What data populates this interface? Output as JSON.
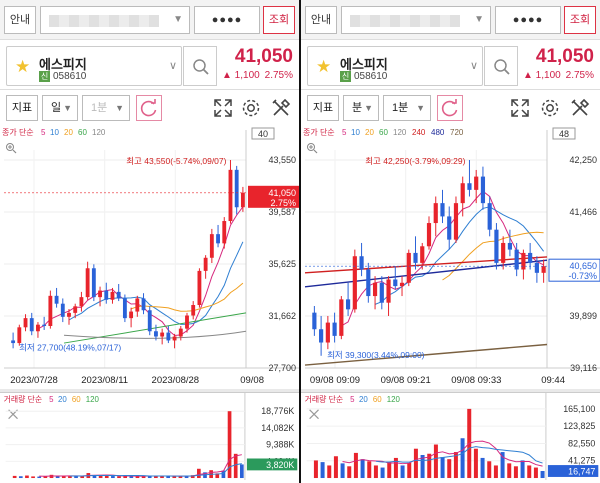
{
  "panes": [
    {
      "id": "left",
      "topbar": {
        "notice": "안내",
        "password_mask": "●●●●",
        "query": "조회"
      },
      "stock": {
        "name": "에스피지",
        "tag": "신",
        "code": "058610",
        "price": "41,050",
        "change": "▲ 1,100",
        "change_pct": "2.75%"
      },
      "toolbar": {
        "indicator": "지표",
        "period": "일",
        "minute": "1분"
      },
      "chart_data": {
        "type": "candlestick",
        "legend": {
          "prefix": "종가 단순",
          "periods": [
            {
              "label": "5",
              "color": "#d6287e"
            },
            {
              "label": "10",
              "color": "#2f7fd2"
            },
            {
              "label": "20",
              "color": "#f0a020"
            },
            {
              "label": "60",
              "color": "#3aa64a"
            },
            {
              "label": "120",
              "color": "#888888"
            }
          ]
        },
        "right_box": "40",
        "y_ticks": [
          "43,550",
          "39,587",
          "35,625",
          "31,662",
          "27,700"
        ],
        "ylim": [
          27700,
          43550
        ],
        "x_ticks": [
          "2023/07/28",
          "2023/08/11",
          "2023/08/28",
          "09/08"
        ],
        "high_label": "최고 43,550(-5.74%,09/07)",
        "low_label": "최저 27,700(48.19%,07/17)",
        "current": {
          "price": "41,050",
          "pct": "2.75%"
        },
        "candles": [
          [
            29800,
            30400,
            29200,
            29600
          ],
          [
            29600,
            31000,
            29400,
            30800
          ],
          [
            30800,
            31800,
            30500,
            31500
          ],
          [
            31500,
            31900,
            30200,
            30500
          ],
          [
            30500,
            31200,
            30000,
            31000
          ],
          [
            31000,
            31600,
            30600,
            30900
          ],
          [
            30900,
            33600,
            30700,
            33200
          ],
          [
            33200,
            33800,
            32300,
            32600
          ],
          [
            32600,
            33000,
            31200,
            31600
          ],
          [
            31600,
            32200,
            31000,
            31900
          ],
          [
            31900,
            32600,
            31500,
            32400
          ],
          [
            32400,
            33500,
            32000,
            33100
          ],
          [
            33100,
            35800,
            32900,
            35300
          ],
          [
            35300,
            35600,
            32800,
            33100
          ],
          [
            33100,
            33900,
            32400,
            33600
          ],
          [
            33600,
            34200,
            32600,
            32900
          ],
          [
            32900,
            33800,
            32600,
            33500
          ],
          [
            33500,
            34100,
            32800,
            33000
          ],
          [
            33000,
            33300,
            31200,
            31500
          ],
          [
            31500,
            32300,
            30800,
            32000
          ],
          [
            32000,
            33200,
            31600,
            33000
          ],
          [
            33000,
            33400,
            31800,
            32100
          ],
          [
            32100,
            32400,
            30200,
            30500
          ],
          [
            30500,
            31000,
            29800,
            30100
          ],
          [
            30100,
            30700,
            29500,
            30400
          ],
          [
            30400,
            30900,
            29600,
            29800
          ],
          [
            29800,
            30300,
            29200,
            30100
          ],
          [
            30100,
            30900,
            29800,
            30700
          ],
          [
            30700,
            31900,
            30400,
            31700
          ],
          [
            31700,
            32800,
            31400,
            32500
          ],
          [
            32500,
            35300,
            32300,
            35100
          ],
          [
            35100,
            36300,
            34500,
            36100
          ],
          [
            36100,
            38300,
            35700,
            37900
          ],
          [
            37900,
            38600,
            36900,
            37200
          ],
          [
            37200,
            39200,
            36800,
            38900
          ],
          [
            38900,
            43550,
            38700,
            42800
          ],
          [
            42800,
            43100,
            39400,
            39950
          ],
          [
            39950,
            41500,
            39600,
            41050
          ]
        ]
      },
      "volume": {
        "legend": {
          "prefix": "거래량 단순",
          "periods": [
            {
              "label": "5",
              "color": "#d6287e"
            },
            {
              "label": "20",
              "color": "#2f7fd2"
            },
            {
              "label": "60",
              "color": "#f0a020"
            },
            {
              "label": "120",
              "color": "#3aa64a"
            }
          ]
        },
        "y_ticks": [
          "18,776K",
          "14,082K",
          "9,388K",
          "4,694K"
        ],
        "current": "3,820K",
        "ylim": [
          0,
          20000
        ],
        "values": [
          600,
          500,
          700,
          450,
          400,
          500,
          900,
          600,
          550,
          500,
          480,
          700,
          1400,
          800,
          600,
          700,
          550,
          520,
          600,
          500,
          450,
          500,
          700,
          600,
          550,
          500,
          480,
          520,
          650,
          800,
          2600,
          1600,
          2200,
          1300,
          2100,
          18776,
          6800,
          3820
        ]
      }
    },
    {
      "id": "right",
      "topbar": {
        "notice": "안내",
        "password_mask": "●●●●",
        "query": "조회"
      },
      "stock": {
        "name": "에스피지",
        "tag": "신",
        "code": "058610",
        "price": "41,050",
        "change": "▲ 1,100",
        "change_pct": "2.75%"
      },
      "toolbar": {
        "indicator": "지표",
        "period": "분",
        "minute": "1분"
      },
      "chart_data": {
        "type": "candlestick",
        "legend": {
          "prefix": "종가 단순",
          "periods": [
            {
              "label": "5",
              "color": "#d6287e"
            },
            {
              "label": "10",
              "color": "#2f7fd2"
            },
            {
              "label": "20",
              "color": "#f0a020"
            },
            {
              "label": "60",
              "color": "#3aa64a"
            },
            {
              "label": "120",
              "color": "#888888"
            },
            {
              "label": "240",
              "color": "#d02020"
            },
            {
              "label": "480",
              "color": "#1e2a9a"
            },
            {
              "label": "720",
              "color": "#7a6040"
            }
          ]
        },
        "right_box": "48",
        "y_ticks": [
          "42,250",
          "41,466",
          "40,683",
          "39,899",
          "39,116"
        ],
        "ylim": [
          39116,
          42250
        ],
        "x_ticks": [
          "09/08 09:09",
          "09/08 09:21",
          "09/08 09:33",
          "09:44"
        ],
        "high_label": "최고 42,250(-3.79%,09:29)",
        "low_label": "최저 39,300(3.44%,09:00)",
        "current": {
          "price": "40,650",
          "pct": "-0.73%"
        },
        "candles": [
          [
            39950,
            40050,
            39600,
            39700
          ],
          [
            39700,
            39900,
            39300,
            39500
          ],
          [
            39500,
            39900,
            39400,
            39800
          ],
          [
            39800,
            39950,
            39500,
            39600
          ],
          [
            39600,
            40200,
            39550,
            40150
          ],
          [
            40150,
            40400,
            39900,
            40000
          ],
          [
            40000,
            40900,
            39950,
            40800
          ],
          [
            40800,
            41000,
            40500,
            40600
          ],
          [
            40600,
            40700,
            40100,
            40200
          ],
          [
            40200,
            40500,
            40000,
            40400
          ],
          [
            40400,
            40500,
            40000,
            40100
          ],
          [
            40100,
            40500,
            39900,
            40450
          ],
          [
            40450,
            40650,
            40300,
            40350
          ],
          [
            40350,
            40500,
            40200,
            40400
          ],
          [
            40400,
            40900,
            40350,
            40850
          ],
          [
            40850,
            41100,
            40600,
            40700
          ],
          [
            40700,
            41000,
            40600,
            40950
          ],
          [
            40950,
            41400,
            40900,
            41300
          ],
          [
            41300,
            41700,
            41100,
            41600
          ],
          [
            41600,
            41800,
            41300,
            41400
          ],
          [
            41400,
            41550,
            40900,
            41050
          ],
          [
            41050,
            41700,
            41000,
            41600
          ],
          [
            41600,
            42000,
            41400,
            41900
          ],
          [
            41900,
            42250,
            41700,
            41800
          ],
          [
            41800,
            42100,
            41600,
            42000
          ],
          [
            42000,
            42150,
            41500,
            41600
          ],
          [
            41600,
            41700,
            41100,
            41200
          ],
          [
            41200,
            41300,
            40600,
            40700
          ],
          [
            40700,
            41100,
            40600,
            41000
          ],
          [
            41000,
            41200,
            40800,
            40900
          ],
          [
            40900,
            41000,
            40500,
            40600
          ],
          [
            40600,
            40900,
            40450,
            40850
          ],
          [
            40850,
            41000,
            40600,
            40700
          ],
          [
            40700,
            40800,
            40400,
            40550
          ],
          [
            40550,
            40750,
            40400,
            40650
          ]
        ]
      },
      "volume": {
        "legend": {
          "prefix": "거래량 단순",
          "periods": [
            {
              "label": "5",
              "color": "#d6287e"
            },
            {
              "label": "20",
              "color": "#2f7fd2"
            },
            {
              "label": "60",
              "color": "#f0a020"
            },
            {
              "label": "120",
              "color": "#3aa64a"
            }
          ]
        },
        "y_ticks": [
          "165,100",
          "123,825",
          "82,550",
          "41,275"
        ],
        "current": "16,747",
        "ylim": [
          0,
          170000
        ],
        "values": [
          42000,
          38000,
          30000,
          52000,
          35000,
          28000,
          60000,
          45000,
          40000,
          30000,
          25000,
          38000,
          48000,
          30000,
          36000,
          70000,
          55000,
          58000,
          80000,
          50000,
          45000,
          62000,
          95000,
          165100,
          70000,
          48000,
          40000,
          30000,
          62000,
          35000,
          28000,
          42000,
          30000,
          25000,
          16747
        ]
      }
    }
  ]
}
